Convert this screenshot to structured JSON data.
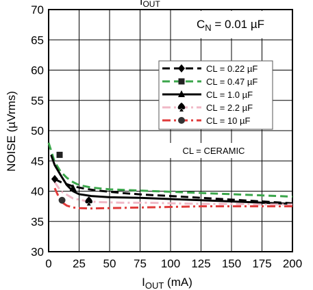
{
  "chart_data": {
    "type": "line",
    "xlabel_main": "I",
    "xlabel_sub": "OUT",
    "xlabel_unit": " (mA)",
    "ylabel": "NOISE (µVrms)",
    "xlim": [
      0,
      200
    ],
    "ylim": [
      30,
      70
    ],
    "xticks": [
      "0",
      "25",
      "50",
      "75",
      "100",
      "125",
      "150",
      "175",
      "200"
    ],
    "yticks": [
      "30",
      "35",
      "40",
      "45",
      "50",
      "55",
      "60",
      "65",
      "70"
    ],
    "grid": true,
    "legend_position": "upper-right",
    "annotations": {
      "cn_main": "C",
      "cn_sub": "N",
      "cn_rest": " = 0.01 µF",
      "ceramic": "CL = CERAMIC",
      "top_clipped_main": "I",
      "top_clipped_sub": "OUT"
    },
    "series": [
      {
        "name": "CL = 0.22 µF",
        "color": "#000000",
        "dash": "dashed",
        "marker": "diamond",
        "marker_at": [
          5,
          42
        ],
        "x": [
          5,
          10,
          20,
          30,
          40,
          60,
          80,
          100,
          125,
          150,
          175,
          200
        ],
        "y": [
          42,
          41.5,
          40.8,
          40.4,
          40.1,
          39.7,
          39.4,
          39.2,
          38.9,
          38.6,
          38.3,
          38.0
        ]
      },
      {
        "name": "CL = 0.47 µF",
        "color": "#3aa54a",
        "dash": "dashed",
        "marker": "square",
        "marker_at": [
          9,
          46
        ],
        "x": [
          0,
          5,
          10,
          15,
          20,
          25,
          35,
          50,
          75,
          100,
          125,
          150,
          175,
          200
        ],
        "y": [
          48,
          44.8,
          43.2,
          42.2,
          41.5,
          41.0,
          40.6,
          40.3,
          40.1,
          39.9,
          39.7,
          39.5,
          39.3,
          39.1
        ]
      },
      {
        "name": "CL = 1.0 µF",
        "color": "#000000",
        "dash": "solid",
        "marker": "triangle",
        "marker_at": [
          20,
          40.5
        ],
        "x": [
          2,
          5,
          10,
          15,
          20,
          25,
          35,
          50,
          75,
          100,
          125,
          150,
          175,
          200
        ],
        "y": [
          46,
          44.3,
          42.6,
          41.0,
          40.0,
          39.5,
          39.2,
          39.0,
          38.9,
          38.7,
          38.5,
          38.3,
          38.1,
          37.9
        ]
      },
      {
        "name": "CL = 2.2 µF",
        "color": "#f0b8c6",
        "dash": "dashdot",
        "marker": "spade",
        "marker_at": [
          33,
          38.3
        ],
        "x": [
          5,
          10,
          20,
          30,
          40,
          60,
          80,
          100,
          125,
          150,
          175,
          200
        ],
        "y": [
          41.5,
          40.0,
          38.8,
          38.4,
          38.2,
          38.1,
          38.1,
          38.0,
          37.9,
          37.9,
          37.8,
          37.8
        ]
      },
      {
        "name": "CL = 10 µF",
        "color": "#e03a3a",
        "dash": "dashdot",
        "marker": "circle",
        "marker_at": [
          11,
          38.5
        ],
        "x": [
          5,
          10,
          15,
          20,
          25,
          35,
          50,
          75,
          100,
          125,
          150,
          175,
          200
        ],
        "y": [
          40.5,
          38.3,
          37.6,
          37.3,
          37.2,
          37.15,
          37.2,
          37.3,
          37.4,
          37.5,
          37.5,
          37.5,
          37.5
        ]
      }
    ]
  }
}
